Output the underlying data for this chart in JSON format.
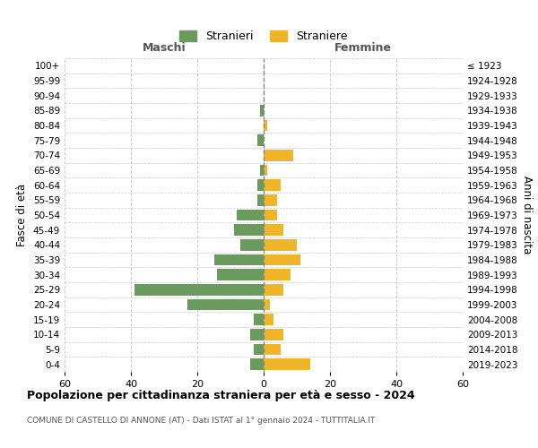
{
  "age_groups_bottom_to_top": [
    "0-4",
    "5-9",
    "10-14",
    "15-19",
    "20-24",
    "25-29",
    "30-34",
    "35-39",
    "40-44",
    "45-49",
    "50-54",
    "55-59",
    "60-64",
    "65-69",
    "70-74",
    "75-79",
    "80-84",
    "85-89",
    "90-94",
    "95-99",
    "100+"
  ],
  "birth_years_bottom_to_top": [
    "2019-2023",
    "2014-2018",
    "2009-2013",
    "2004-2008",
    "1999-2003",
    "1994-1998",
    "1989-1993",
    "1984-1988",
    "1979-1983",
    "1974-1978",
    "1969-1973",
    "1964-1968",
    "1959-1963",
    "1954-1958",
    "1949-1953",
    "1944-1948",
    "1939-1943",
    "1934-1938",
    "1929-1933",
    "1924-1928",
    "≤ 1923"
  ],
  "maschi_bottom_to_top": [
    4,
    3,
    4,
    3,
    23,
    39,
    14,
    15,
    7,
    9,
    8,
    2,
    2,
    1,
    0,
    2,
    0,
    1,
    0,
    0,
    0
  ],
  "femmine_bottom_to_top": [
    14,
    5,
    6,
    3,
    2,
    6,
    8,
    11,
    10,
    6,
    4,
    4,
    5,
    1,
    9,
    0,
    1,
    0,
    0,
    0,
    0
  ],
  "color_maschi": "#6a9a5e",
  "color_femmine": "#f0b429",
  "title": "Popolazione per cittadinanza straniera per età e sesso - 2024",
  "subtitle": "COMUNE DI CASTELLO DI ANNONE (AT) - Dati ISTAT al 1° gennaio 2024 - TUTTITALIA.IT",
  "ylabel_left": "Fasce di età",
  "ylabel_right": "Anni di nascita",
  "xlabel_left": "Maschi",
  "xlabel_right": "Femmine",
  "legend_maschi": "Stranieri",
  "legend_femmine": "Straniere",
  "xlim": 60,
  "background_color": "#ffffff",
  "grid_color": "#cccccc",
  "centerline_color": "#888888"
}
